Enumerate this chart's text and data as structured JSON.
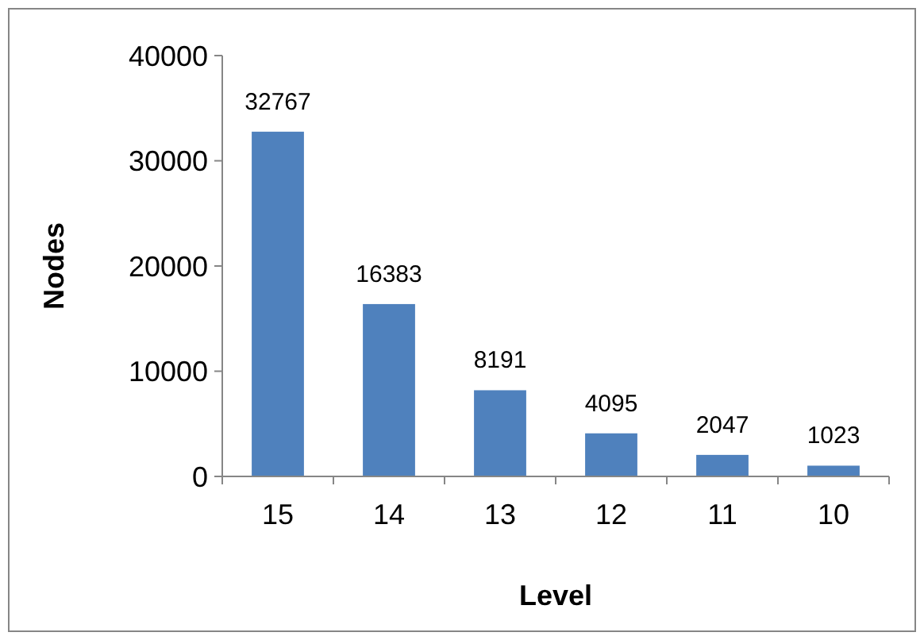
{
  "chart_data": {
    "type": "bar",
    "xlabel": "Level",
    "ylabel": "Nodes",
    "categories": [
      "15",
      "14",
      "13",
      "12",
      "11",
      "10"
    ],
    "values": [
      32767,
      16383,
      8191,
      4095,
      2047,
      1023
    ],
    "color": "#4f81bd",
    "ylim": [
      0,
      40000
    ],
    "yticks": [
      0,
      10000,
      20000,
      30000,
      40000
    ],
    "grid": false,
    "data_labels": true
  }
}
